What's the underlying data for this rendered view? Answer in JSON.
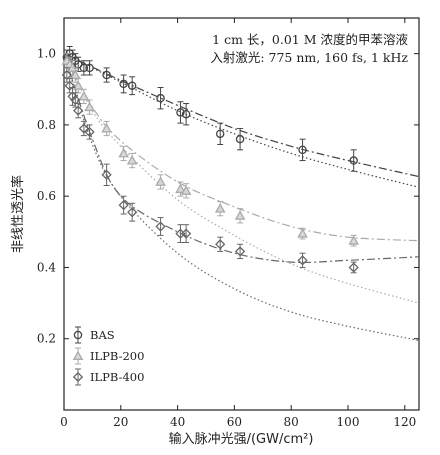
{
  "chart_data": {
    "type": "scatter",
    "xlabel": "输入脉冲光强/(GW/cm²)",
    "ylabel": "非线性透光率",
    "xlim": [
      0,
      125
    ],
    "ylim": [
      0.0,
      1.1
    ],
    "xticks": [
      0,
      20,
      40,
      60,
      80,
      100,
      120
    ],
    "yticks": [
      0.2,
      0.4,
      0.6,
      0.8,
      1.0
    ],
    "xtick_labels": [
      "0",
      "20",
      "40",
      "60",
      "80",
      "100",
      "120"
    ],
    "ytick_labels": [
      "0.2",
      "0.4",
      "0.6",
      "0.8",
      "1.0"
    ],
    "annotation_lines": [
      "1 cm 长，0.01 M 浓度的甲苯溶液",
      "入射激光: 775 nm, 160 fs, 1 kHz"
    ],
    "legend_position": "bottom-left",
    "grid": false,
    "series": [
      {
        "name": "BAS",
        "marker": "circle",
        "color": "#444444",
        "x": [
          1,
          2,
          3,
          4,
          5,
          7,
          9,
          15,
          21,
          24,
          34,
          41,
          43,
          55,
          62,
          84,
          102
        ],
        "y": [
          0.99,
          1.0,
          0.99,
          0.98,
          0.97,
          0.96,
          0.96,
          0.94,
          0.915,
          0.91,
          0.875,
          0.835,
          0.83,
          0.775,
          0.76,
          0.73,
          0.7
        ],
        "err": [
          0.02,
          0.02,
          0.02,
          0.02,
          0.02,
          0.02,
          0.02,
          0.02,
          0.025,
          0.025,
          0.03,
          0.03,
          0.03,
          0.03,
          0.03,
          0.03,
          0.03
        ],
        "fit_dashed": [
          [
            0,
            1.0
          ],
          [
            20,
            0.925
          ],
          [
            40,
            0.855
          ],
          [
            60,
            0.79
          ],
          [
            80,
            0.74
          ],
          [
            100,
            0.7
          ],
          [
            125,
            0.655
          ]
        ],
        "fit_dotted": [
          [
            0,
            1.0
          ],
          [
            20,
            0.92
          ],
          [
            40,
            0.84
          ],
          [
            60,
            0.775
          ],
          [
            80,
            0.72
          ],
          [
            100,
            0.675
          ],
          [
            125,
            0.625
          ]
        ]
      },
      {
        "name": "ILPB-200",
        "marker": "triangle",
        "color": "#aaaaaa",
        "x": [
          1,
          2,
          3,
          4,
          5,
          7,
          9,
          15,
          21,
          24,
          34,
          41,
          43,
          55,
          62,
          84,
          102
        ],
        "y": [
          0.98,
          0.97,
          0.96,
          0.94,
          0.91,
          0.88,
          0.85,
          0.79,
          0.72,
          0.7,
          0.64,
          0.62,
          0.615,
          0.565,
          0.545,
          0.495,
          0.475
        ],
        "err": [
          0.02,
          0.02,
          0.02,
          0.02,
          0.02,
          0.02,
          0.02,
          0.02,
          0.02,
          0.02,
          0.02,
          0.02,
          0.02,
          0.02,
          0.02,
          0.015,
          0.015
        ],
        "fit_dashed": [
          [
            0,
            1.0
          ],
          [
            10,
            0.85
          ],
          [
            20,
            0.755
          ],
          [
            40,
            0.64
          ],
          [
            60,
            0.57
          ],
          [
            80,
            0.515
          ],
          [
            100,
            0.485
          ],
          [
            125,
            0.475
          ]
        ],
        "fit_dotted": [
          [
            0,
            1.0
          ],
          [
            10,
            0.84
          ],
          [
            20,
            0.74
          ],
          [
            40,
            0.59
          ],
          [
            60,
            0.49
          ],
          [
            80,
            0.41
          ],
          [
            100,
            0.355
          ],
          [
            125,
            0.3
          ]
        ]
      },
      {
        "name": "ILPB-400",
        "marker": "diamond",
        "color": "#666666",
        "x": [
          1,
          2,
          3,
          4,
          5,
          7,
          9,
          15,
          21,
          24,
          34,
          41,
          43,
          55,
          62,
          84,
          102
        ],
        "y": [
          0.94,
          0.91,
          0.88,
          0.87,
          0.84,
          0.79,
          0.78,
          0.66,
          0.575,
          0.555,
          0.515,
          0.495,
          0.495,
          0.465,
          0.445,
          0.42,
          0.4
        ],
        "err": [
          0.02,
          0.02,
          0.025,
          0.02,
          0.02,
          0.02,
          0.02,
          0.03,
          0.025,
          0.025,
          0.025,
          0.025,
          0.025,
          0.02,
          0.02,
          0.02,
          0.015
        ],
        "fit_dashed": [
          [
            0,
            1.0
          ],
          [
            10,
            0.76
          ],
          [
            20,
            0.6
          ],
          [
            40,
            0.5
          ],
          [
            60,
            0.44
          ],
          [
            80,
            0.415
          ],
          [
            100,
            0.42
          ],
          [
            125,
            0.43
          ]
        ],
        "fit_dotted": [
          [
            0,
            1.0
          ],
          [
            10,
            0.745
          ],
          [
            20,
            0.6
          ],
          [
            40,
            0.44
          ],
          [
            60,
            0.34
          ],
          [
            80,
            0.275
          ],
          [
            100,
            0.235
          ],
          [
            125,
            0.195
          ]
        ]
      }
    ]
  }
}
